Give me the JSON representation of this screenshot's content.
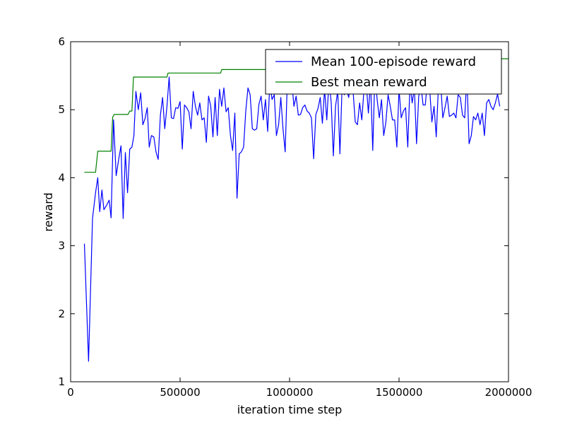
{
  "chart_data": {
    "type": "line",
    "title": "",
    "xlabel": "iteration time step",
    "ylabel": "reward",
    "xlim": [
      0,
      2000000
    ],
    "ylim": [
      1,
      6
    ],
    "xticks": [
      0,
      500000,
      1000000,
      1500000,
      2000000
    ],
    "xtick_labels": [
      "0",
      "500000",
      "1000000",
      "1500000",
      "2000000"
    ],
    "yticks": [
      1,
      2,
      3,
      4,
      5,
      6
    ],
    "ytick_labels": [
      "1",
      "2",
      "3",
      "4",
      "5",
      "6"
    ],
    "grid": false,
    "legend_position": "top-right",
    "series": [
      {
        "name": "Mean 100-episode reward",
        "color": "#0000ff",
        "points": [
          [
            63000,
            3.03
          ],
          [
            82000,
            1.3
          ],
          [
            100000,
            3.4
          ],
          [
            114000,
            3.78
          ],
          [
            124000,
            4.0
          ],
          [
            133000,
            3.5
          ],
          [
            143000,
            3.82
          ],
          [
            152000,
            3.53
          ],
          [
            165000,
            3.6
          ],
          [
            176000,
            3.67
          ],
          [
            185000,
            3.41
          ],
          [
            196000,
            4.85
          ],
          [
            208000,
            4.03
          ],
          [
            220000,
            4.28
          ],
          [
            230000,
            4.47
          ],
          [
            240000,
            3.4
          ],
          [
            250000,
            4.37
          ],
          [
            260000,
            3.78
          ],
          [
            270000,
            4.42
          ],
          [
            280000,
            4.45
          ],
          [
            289000,
            4.62
          ],
          [
            298000,
            5.27
          ],
          [
            309000,
            5.0
          ],
          [
            320000,
            5.25
          ],
          [
            330000,
            4.78
          ],
          [
            340000,
            4.87
          ],
          [
            350000,
            5.03
          ],
          [
            359000,
            4.45
          ],
          [
            369000,
            4.62
          ],
          [
            380000,
            4.6
          ],
          [
            390000,
            4.38
          ],
          [
            400000,
            4.27
          ],
          [
            410000,
            4.92
          ],
          [
            420000,
            5.18
          ],
          [
            430000,
            4.72
          ],
          [
            440000,
            5.05
          ],
          [
            450000,
            5.48
          ],
          [
            460000,
            4.88
          ],
          [
            470000,
            4.87
          ],
          [
            480000,
            5.03
          ],
          [
            490000,
            5.02
          ],
          [
            500000,
            5.12
          ],
          [
            510000,
            4.42
          ],
          [
            520000,
            5.07
          ],
          [
            530000,
            5.03
          ],
          [
            540000,
            4.97
          ],
          [
            550000,
            4.72
          ],
          [
            560000,
            5.27
          ],
          [
            570000,
            5.05
          ],
          [
            580000,
            4.92
          ],
          [
            590000,
            5.1
          ],
          [
            600000,
            4.85
          ],
          [
            610000,
            4.88
          ],
          [
            620000,
            4.52
          ],
          [
            630000,
            5.2
          ],
          [
            640000,
            5.05
          ],
          [
            650000,
            4.6
          ],
          [
            660000,
            5.18
          ],
          [
            670000,
            4.62
          ],
          [
            680000,
            5.3
          ],
          [
            690000,
            5.05
          ],
          [
            700000,
            5.32
          ],
          [
            710000,
            4.97
          ],
          [
            720000,
            5.03
          ],
          [
            730000,
            4.62
          ],
          [
            740000,
            4.4
          ],
          [
            750000,
            4.95
          ],
          [
            760000,
            3.7
          ],
          [
            770000,
            4.35
          ],
          [
            780000,
            4.38
          ],
          [
            790000,
            4.45
          ],
          [
            800000,
            4.98
          ],
          [
            810000,
            5.32
          ],
          [
            820000,
            5.22
          ],
          [
            830000,
            4.72
          ],
          [
            840000,
            4.7
          ],
          [
            850000,
            4.72
          ],
          [
            860000,
            5.08
          ],
          [
            870000,
            5.2
          ],
          [
            880000,
            4.85
          ],
          [
            890000,
            5.15
          ],
          [
            900000,
            4.68
          ],
          [
            910000,
            5.4
          ],
          [
            920000,
            5.15
          ],
          [
            930000,
            5.22
          ],
          [
            940000,
            4.62
          ],
          [
            950000,
            4.78
          ],
          [
            960000,
            5.18
          ],
          [
            970000,
            4.72
          ],
          [
            980000,
            4.38
          ],
          [
            990000,
            5.45
          ],
          [
            1000000,
            5.7
          ],
          [
            1010000,
            5.42
          ],
          [
            1020000,
            5.05
          ],
          [
            1030000,
            5.2
          ],
          [
            1040000,
            4.92
          ],
          [
            1050000,
            4.93
          ],
          [
            1060000,
            5.03
          ],
          [
            1070000,
            5.07
          ],
          [
            1080000,
            4.98
          ],
          [
            1090000,
            4.95
          ],
          [
            1100000,
            4.88
          ],
          [
            1110000,
            4.28
          ],
          [
            1120000,
            4.93
          ],
          [
            1130000,
            5.02
          ],
          [
            1140000,
            5.18
          ],
          [
            1150000,
            4.8
          ],
          [
            1160000,
            5.3
          ],
          [
            1170000,
            4.85
          ],
          [
            1180000,
            5.42
          ],
          [
            1190000,
            5.12
          ],
          [
            1200000,
            4.32
          ],
          [
            1210000,
            5.05
          ],
          [
            1220000,
            5.28
          ],
          [
            1230000,
            4.35
          ],
          [
            1240000,
            5.35
          ],
          [
            1250000,
            5.22
          ],
          [
            1260000,
            5.3
          ],
          [
            1270000,
            5.18
          ],
          [
            1280000,
            5.4
          ],
          [
            1290000,
            5.28
          ],
          [
            1300000,
            4.82
          ],
          [
            1310000,
            4.78
          ],
          [
            1320000,
            5.1
          ],
          [
            1330000,
            4.85
          ],
          [
            1340000,
            5.3
          ],
          [
            1350000,
            5.4
          ],
          [
            1360000,
            4.95
          ],
          [
            1370000,
            5.42
          ],
          [
            1380000,
            4.4
          ],
          [
            1390000,
            5.55
          ],
          [
            1400000,
            5.15
          ],
          [
            1410000,
            4.88
          ],
          [
            1420000,
            5.15
          ],
          [
            1430000,
            4.62
          ],
          [
            1440000,
            4.82
          ],
          [
            1450000,
            5.22
          ],
          [
            1460000,
            5.05
          ],
          [
            1470000,
            4.85
          ],
          [
            1480000,
            4.85
          ],
          [
            1490000,
            4.45
          ],
          [
            1500000,
            5.3
          ],
          [
            1510000,
            4.88
          ],
          [
            1520000,
            4.98
          ],
          [
            1530000,
            5.03
          ],
          [
            1540000,
            4.45
          ],
          [
            1550000,
            5.38
          ],
          [
            1560000,
            5.1
          ],
          [
            1570000,
            5.32
          ],
          [
            1580000,
            4.5
          ],
          [
            1590000,
            5.2
          ],
          [
            1600000,
            5.35
          ],
          [
            1610000,
            5.07
          ],
          [
            1620000,
            5.07
          ],
          [
            1630000,
            5.45
          ],
          [
            1640000,
            5.3
          ],
          [
            1650000,
            4.82
          ],
          [
            1660000,
            5.05
          ],
          [
            1670000,
            4.6
          ],
          [
            1680000,
            5.35
          ],
          [
            1690000,
            5.4
          ],
          [
            1700000,
            4.88
          ],
          [
            1710000,
            5.03
          ],
          [
            1720000,
            5.2
          ],
          [
            1730000,
            4.9
          ],
          [
            1740000,
            4.92
          ],
          [
            1750000,
            4.95
          ],
          [
            1760000,
            4.88
          ],
          [
            1770000,
            5.22
          ],
          [
            1780000,
            5.18
          ],
          [
            1790000,
            4.92
          ],
          [
            1800000,
            4.88
          ],
          [
            1810000,
            5.5
          ],
          [
            1820000,
            4.5
          ],
          [
            1830000,
            4.62
          ],
          [
            1840000,
            4.9
          ],
          [
            1850000,
            4.85
          ],
          [
            1860000,
            4.95
          ],
          [
            1870000,
            4.78
          ],
          [
            1880000,
            4.95
          ],
          [
            1890000,
            4.62
          ],
          [
            1900000,
            5.1
          ],
          [
            1910000,
            5.15
          ],
          [
            1920000,
            5.05
          ],
          [
            1930000,
            5.0
          ],
          [
            1940000,
            5.1
          ],
          [
            1950000,
            5.23
          ],
          [
            1960000,
            5.05
          ]
        ]
      },
      {
        "name": "Best mean reward",
        "color": "#008000",
        "points": [
          [
            63000,
            4.08
          ],
          [
            114000,
            4.08
          ],
          [
            124000,
            4.39
          ],
          [
            185000,
            4.39
          ],
          [
            192000,
            4.89
          ],
          [
            199000,
            4.93
          ],
          [
            262000,
            4.93
          ],
          [
            270000,
            4.98
          ],
          [
            280000,
            4.98
          ],
          [
            287000,
            5.48
          ],
          [
            440000,
            5.48
          ],
          [
            445000,
            5.54
          ],
          [
            685000,
            5.54
          ],
          [
            690000,
            5.59
          ],
          [
            910000,
            5.59
          ],
          [
            915000,
            5.75
          ],
          [
            2000000,
            5.75
          ]
        ]
      }
    ]
  }
}
